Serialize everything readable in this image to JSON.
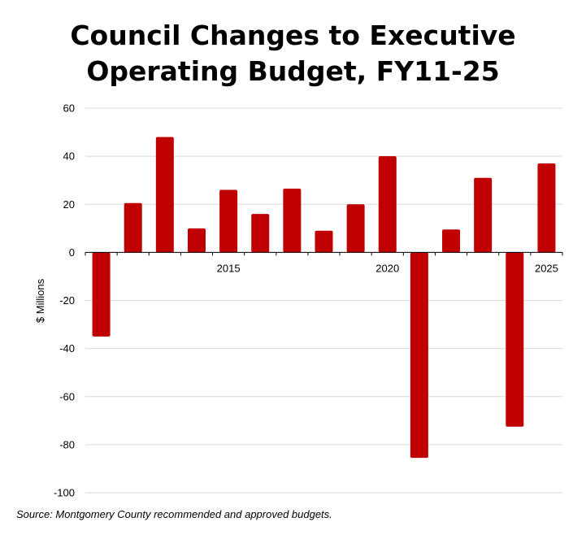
{
  "chart_data": {
    "type": "bar",
    "title_lines": [
      "Council Changes to Executive",
      "Operating Budget, FY11-25"
    ],
    "ylabel": "$ Millions",
    "xlabel": "",
    "x": [
      2011,
      2012,
      2013,
      2014,
      2015,
      2016,
      2017,
      2018,
      2019,
      2020,
      2021,
      2022,
      2023,
      2024,
      2025
    ],
    "values": [
      -35,
      20.5,
      48,
      10,
      26,
      16,
      26.5,
      9,
      20,
      40,
      -85.5,
      9.5,
      31,
      -72.5,
      37
    ],
    "x_tick_labels": [
      {
        "x": 2015,
        "label": "2015"
      },
      {
        "x": 2020,
        "label": "2020"
      },
      {
        "x": 2025,
        "label": "2025"
      }
    ],
    "y_ticks": [
      "60",
      "40",
      "20",
      "0",
      "-20",
      "-40",
      "-60",
      "-80",
      "-100"
    ],
    "ylim": [
      -100,
      60
    ],
    "grid": true,
    "bar_color": "#c00000"
  },
  "source": "Source: Montgomery County recommended and approved budgets."
}
